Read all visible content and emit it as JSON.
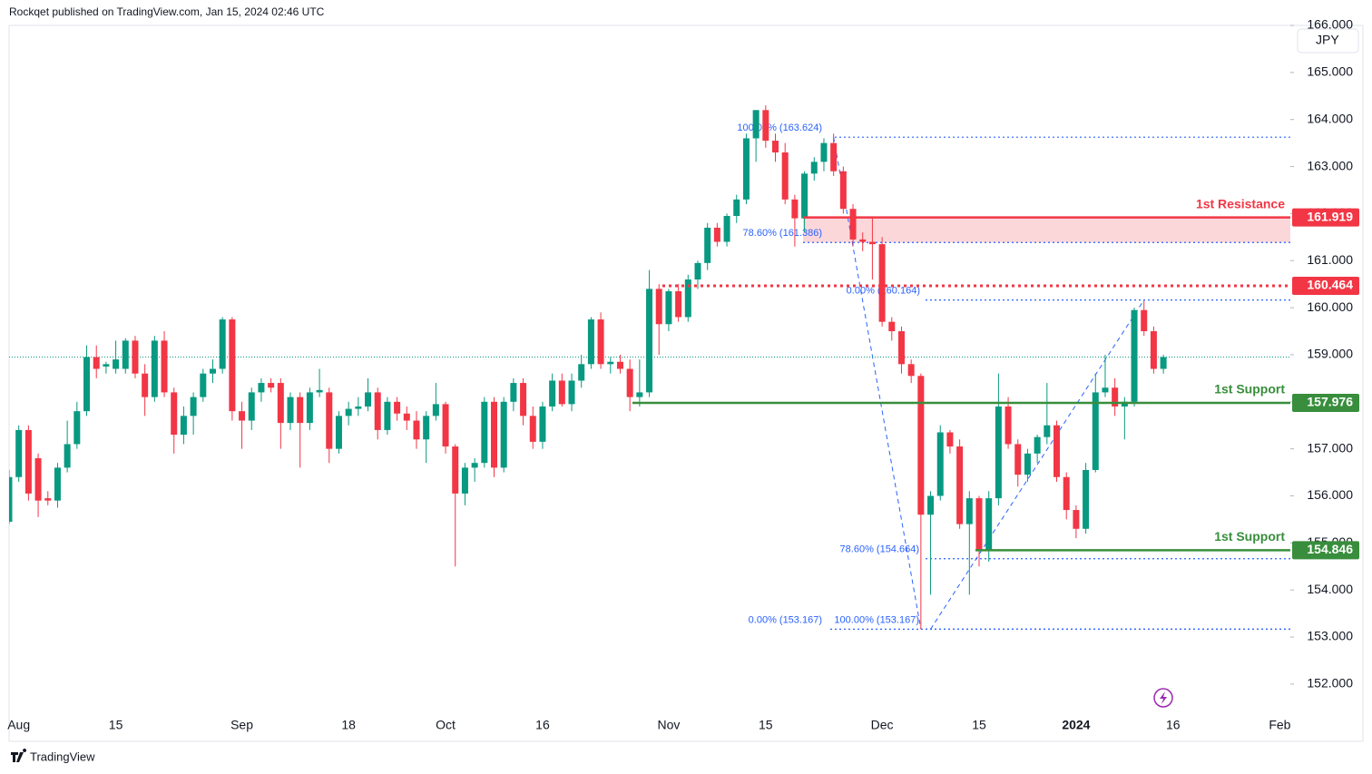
{
  "chart_data": {
    "type": "candlestick",
    "header": "Rockqet published on TradingView.com, Jan 15, 2024 02:46 UTC",
    "currency": "JPY",
    "footer": "TradingView",
    "up_color": "#089981",
    "down_color": "#f23645",
    "categories": [
      null,
      "Aug",
      null,
      null,
      null,
      null,
      null,
      null,
      null,
      null,
      null,
      "15",
      null,
      null,
      null,
      null,
      null,
      null,
      null,
      null,
      null,
      null,
      null,
      null,
      "Sep",
      null,
      null,
      null,
      null,
      null,
      null,
      null,
      null,
      null,
      null,
      "18",
      null,
      null,
      null,
      null,
      null,
      null,
      null,
      null,
      null,
      "Oct",
      null,
      null,
      null,
      null,
      null,
      null,
      null,
      null,
      null,
      "16",
      null,
      null,
      null,
      null,
      null,
      null,
      null,
      null,
      null,
      null,
      null,
      null,
      "Nov",
      null,
      null,
      null,
      null,
      null,
      null,
      null,
      null,
      null,
      "15",
      null,
      null,
      null,
      null,
      null,
      null,
      null,
      null,
      null,
      null,
      null,
      "Dec",
      null,
      null,
      null,
      null,
      null,
      null,
      null,
      null,
      null,
      "15",
      null,
      null,
      null,
      null,
      null,
      null,
      null,
      null,
      null,
      "2024",
      null,
      null,
      null,
      null,
      null,
      null,
      null,
      null,
      null,
      "16",
      null,
      null,
      null,
      null,
      null,
      null,
      null,
      null,
      null,
      null,
      "Feb"
    ],
    "candles": [
      [
        155.45,
        156.55,
        155.4,
        156.4
      ],
      [
        156.4,
        157.5,
        156.3,
        157.4
      ],
      [
        157.4,
        157.5,
        155.9,
        156.05
      ],
      [
        156.8,
        156.9,
        155.55,
        155.9
      ],
      [
        155.95,
        156.1,
        155.8,
        155.9
      ],
      [
        155.9,
        156.7,
        155.75,
        156.6
      ],
      [
        156.6,
        157.6,
        156.5,
        157.1
      ],
      [
        157.1,
        158.0,
        157.0,
        157.8
      ],
      [
        157.8,
        159.2,
        157.7,
        158.95
      ],
      [
        158.95,
        159.2,
        158.5,
        158.7
      ],
      [
        158.75,
        158.85,
        158.6,
        158.8
      ],
      [
        158.7,
        159.3,
        158.6,
        158.9
      ],
      [
        158.7,
        159.35,
        158.6,
        159.3
      ],
      [
        159.3,
        159.4,
        158.5,
        158.6
      ],
      [
        158.6,
        158.8,
        157.7,
        158.1
      ],
      [
        158.1,
        159.4,
        158.0,
        159.3
      ],
      [
        159.3,
        159.5,
        158.1,
        158.2
      ],
      [
        158.2,
        158.3,
        156.9,
        157.3
      ],
      [
        157.3,
        157.9,
        157.1,
        157.7
      ],
      [
        157.7,
        158.2,
        157.3,
        158.1
      ],
      [
        158.1,
        158.7,
        158.0,
        158.6
      ],
      [
        158.6,
        158.9,
        158.4,
        158.7
      ],
      [
        158.7,
        159.8,
        158.6,
        159.75
      ],
      [
        159.75,
        159.8,
        157.6,
        157.8
      ],
      [
        157.8,
        158.0,
        157.0,
        157.6
      ],
      [
        157.6,
        158.3,
        157.4,
        158.2
      ],
      [
        158.2,
        158.5,
        158.0,
        158.4
      ],
      [
        158.4,
        158.5,
        158.2,
        158.3
      ],
      [
        158.4,
        158.5,
        157.0,
        157.55
      ],
      [
        157.55,
        158.2,
        157.4,
        158.1
      ],
      [
        158.1,
        158.2,
        156.6,
        157.55
      ],
      [
        157.55,
        158.3,
        157.4,
        158.2
      ],
      [
        158.2,
        158.7,
        158.1,
        158.25
      ],
      [
        158.2,
        158.3,
        156.7,
        157.0
      ],
      [
        157.0,
        157.8,
        156.9,
        157.7
      ],
      [
        157.7,
        158.0,
        157.5,
        157.85
      ],
      [
        157.85,
        158.1,
        157.7,
        157.9
      ],
      [
        157.9,
        158.5,
        157.8,
        158.2
      ],
      [
        158.2,
        158.3,
        157.2,
        157.4
      ],
      [
        157.4,
        158.1,
        157.3,
        158.0
      ],
      [
        158.0,
        158.1,
        157.6,
        157.75
      ],
      [
        157.75,
        157.9,
        157.4,
        157.6
      ],
      [
        157.6,
        157.8,
        157.0,
        157.2
      ],
      [
        157.2,
        157.8,
        156.7,
        157.7
      ],
      [
        157.7,
        158.4,
        157.6,
        157.95
      ],
      [
        157.95,
        158.0,
        156.9,
        157.05
      ],
      [
        157.05,
        157.1,
        154.5,
        156.05
      ],
      [
        156.05,
        156.7,
        155.8,
        156.6
      ],
      [
        156.6,
        156.8,
        156.3,
        156.7
      ],
      [
        156.7,
        158.1,
        156.6,
        158.0
      ],
      [
        158.0,
        158.1,
        156.4,
        156.6
      ],
      [
        156.6,
        158.1,
        156.5,
        158.0
      ],
      [
        158.0,
        158.5,
        157.8,
        158.4
      ],
      [
        158.4,
        158.5,
        157.5,
        157.7
      ],
      [
        157.7,
        157.9,
        157.0,
        157.15
      ],
      [
        157.15,
        158.0,
        157.0,
        157.9
      ],
      [
        157.9,
        158.6,
        157.8,
        158.45
      ],
      [
        158.45,
        158.6,
        157.9,
        157.95
      ],
      [
        157.95,
        158.6,
        157.8,
        158.45
      ],
      [
        158.45,
        159.0,
        158.3,
        158.8
      ],
      [
        158.8,
        159.8,
        158.7,
        159.75
      ],
      [
        159.75,
        159.9,
        158.7,
        158.8
      ],
      [
        158.8,
        158.95,
        158.6,
        158.85
      ],
      [
        158.85,
        159.0,
        158.6,
        158.7
      ],
      [
        158.7,
        158.9,
        157.8,
        158.1
      ],
      [
        158.1,
        158.9,
        157.9,
        158.2
      ],
      [
        158.2,
        160.8,
        158.1,
        160.4
      ],
      [
        160.4,
        160.5,
        159.0,
        159.65
      ],
      [
        159.65,
        160.4,
        159.5,
        160.35
      ],
      [
        160.35,
        160.5,
        159.7,
        159.8
      ],
      [
        159.8,
        160.7,
        159.7,
        160.6
      ],
      [
        160.6,
        161.0,
        160.4,
        160.95
      ],
      [
        160.95,
        161.8,
        160.8,
        161.7
      ],
      [
        161.7,
        161.8,
        161.3,
        161.4
      ],
      [
        161.4,
        162.0,
        161.3,
        161.95
      ],
      [
        161.95,
        162.4,
        161.8,
        162.3
      ],
      [
        162.3,
        163.7,
        162.2,
        163.6
      ],
      [
        163.6,
        164.2,
        163.1,
        164.2
      ],
      [
        164.2,
        164.3,
        163.4,
        163.55
      ],
      [
        163.55,
        163.7,
        163.1,
        163.3
      ],
      [
        163.3,
        163.5,
        162.2,
        162.3
      ],
      [
        162.3,
        162.4,
        161.3,
        161.9
      ],
      [
        161.9,
        162.9,
        161.6,
        162.85
      ],
      [
        162.85,
        163.2,
        162.7,
        163.1
      ],
      [
        163.1,
        163.6,
        162.9,
        163.5
      ],
      [
        163.5,
        163.7,
        162.8,
        162.9
      ],
      [
        162.9,
        163.0,
        162.0,
        162.1
      ],
      [
        162.1,
        162.2,
        161.3,
        161.45
      ],
      [
        161.45,
        161.6,
        161.2,
        161.4
      ],
      [
        161.4,
        161.9,
        160.6,
        161.35
      ],
      [
        161.35,
        161.5,
        159.6,
        159.7
      ],
      [
        159.7,
        159.8,
        159.3,
        159.5
      ],
      [
        159.5,
        159.6,
        158.6,
        158.8
      ],
      [
        158.8,
        158.9,
        158.4,
        158.55
      ],
      [
        158.55,
        158.6,
        153.167,
        155.6
      ],
      [
        155.6,
        156.1,
        153.9,
        156.0
      ],
      [
        156.0,
        157.5,
        155.9,
        157.35
      ],
      [
        157.35,
        157.4,
        156.9,
        157.05
      ],
      [
        157.05,
        157.2,
        155.3,
        155.4
      ],
      [
        155.4,
        156.1,
        153.9,
        155.95
      ],
      [
        155.95,
        156.0,
        154.5,
        154.85
      ],
      [
        154.85,
        156.1,
        154.6,
        155.95
      ],
      [
        155.95,
        158.6,
        155.8,
        157.9
      ],
      [
        157.9,
        158.1,
        157.0,
        157.1
      ],
      [
        157.1,
        157.2,
        156.2,
        156.45
      ],
      [
        156.45,
        157.0,
        156.3,
        156.9
      ],
      [
        156.9,
        157.3,
        156.7,
        157.25
      ],
      [
        157.25,
        158.4,
        157.1,
        157.5
      ],
      [
        157.5,
        157.6,
        156.3,
        156.4
      ],
      [
        156.4,
        156.5,
        155.5,
        155.7
      ],
      [
        155.7,
        155.8,
        155.1,
        155.3
      ],
      [
        155.3,
        156.7,
        155.2,
        156.55
      ],
      [
        156.55,
        158.6,
        156.5,
        158.2
      ],
      [
        158.2,
        159.0,
        158.1,
        158.3
      ],
      [
        158.3,
        158.5,
        157.7,
        157.9
      ],
      [
        157.9,
        158.1,
        157.2,
        158.0
      ],
      [
        158.0,
        160.0,
        157.9,
        159.95
      ],
      [
        159.95,
        160.15,
        159.4,
        159.5
      ],
      [
        159.5,
        159.6,
        158.6,
        158.7
      ],
      [
        158.7,
        159.0,
        158.6,
        158.95
      ],
      null,
      null,
      null,
      null,
      null,
      null,
      null,
      null,
      null,
      null,
      null,
      null
    ],
    "ylim": [
      151.4,
      166.0
    ],
    "yticks": [
      {
        "value": 152,
        "label": "152.000"
      },
      {
        "value": 153,
        "label": "153.000"
      },
      {
        "value": 154,
        "label": "154.000"
      },
      {
        "value": 155,
        "label": "155.000"
      },
      {
        "value": 156,
        "label": "156.000"
      },
      {
        "value": 157,
        "label": "157.000"
      },
      {
        "value": 158,
        "label": "158.000"
      },
      {
        "value": 159,
        "label": "159.000"
      },
      {
        "value": 160,
        "label": "160.000"
      },
      {
        "value": 161,
        "label": "161.000"
      },
      {
        "value": 162,
        "label": "162.000"
      },
      {
        "value": 163,
        "label": "163.000"
      },
      {
        "value": 164,
        "label": "164.000"
      },
      {
        "value": 165,
        "label": "165.000"
      },
      {
        "value": 166,
        "label": "166.000"
      }
    ],
    "levels": [
      {
        "label": "1st Resistance",
        "price": 161.919,
        "color": "#f23645"
      },
      {
        "price": 160.464,
        "color": "#f23645",
        "style": "dotted"
      },
      {
        "label": "1st Support",
        "price": 157.976,
        "color": "#388e3c"
      },
      {
        "label": "1st Support",
        "price": 154.846,
        "color": "#388e3c"
      }
    ],
    "zone": {
      "from": 161.919,
      "to": 161.386,
      "color": "#f23645"
    },
    "fib_color": "#2962ff",
    "fib_levels": [
      {
        "label": "100.00% (163.624)",
        "price": 163.624
      },
      {
        "label": "78.60% (161.386)",
        "price": 161.386
      },
      {
        "label": "0.00% (160.164)",
        "price": 160.164
      },
      {
        "label": "78.60% (154.664)",
        "price": 154.664
      },
      {
        "label": "0.00% (153.167)",
        "price": 153.167
      },
      {
        "label": "100.00% (153.167)",
        "price": 153.167
      }
    ]
  }
}
